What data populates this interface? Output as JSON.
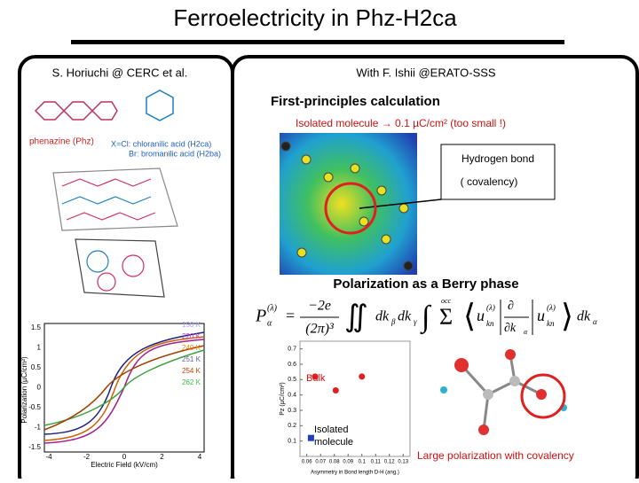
{
  "title": "Ferroelectricity in Phz-H2ca",
  "left": {
    "credit": "S. Horiuchi @ CERC et al.",
    "phenazine": "phenazine (Phz)",
    "acid_1": "X=Cl: chloranilic acid (H2ca)",
    "acid_2": "Br: bromanilic acid (H2ba)",
    "hysteresis": {
      "ylabel": "Polarization (µC/cm²)",
      "xlabel": "Electric Field (kV/cm)",
      "yticks": [
        1.5,
        1,
        0.5,
        0,
        -0.5,
        -1,
        -1.5
      ],
      "xticks": [
        -4,
        -2,
        0,
        2,
        4
      ],
      "temperatures": [
        "150 K",
        "220 K",
        "240 K",
        "251 K",
        "254 K",
        "262 K"
      ]
    }
  },
  "right": {
    "credit": "With F. Ishii @ERATO-SSS",
    "heading": "First-principles calculation",
    "isolated_note": "Isolated molecule → 0.1 µC/cm² (too small !)",
    "hbond_1": "Hydrogen bond",
    "hbond_2": "( covalency)",
    "berry": "Polarization as a Berry phase",
    "formula": {
      "lhs": "P",
      "lhs_sup": "(λ)",
      "lhs_sub": "α",
      "num": "−2e",
      "den": "(2π)³",
      "integrand": "dk",
      "beta": "β",
      "gamma": "γ",
      "sum_label": "occ",
      "bra": "u",
      "lam": "(λ)",
      "kn": "kn",
      "partial": "∂",
      "dka": "∂k",
      "alpha": "α"
    },
    "scatter": {
      "ylabel": "Pz (µC/cm²)",
      "xlabel": "Asymmetry in Bond length D-H (ang.)",
      "yticks": [
        0.7,
        0.6,
        0.5,
        0.4,
        0.3,
        0.2,
        0.1
      ],
      "xticks": [
        0.06,
        0.07,
        0.08,
        0.09,
        0.1,
        0.11,
        0.12,
        0.13
      ],
      "ylim": [
        0,
        0.75
      ],
      "xlim": [
        0.055,
        0.135
      ],
      "bulk_label": "Bulk",
      "isolated_label": "Isolated molecule",
      "bulk_points": {
        "x": [
          0.066,
          0.081,
          0.1
        ],
        "y": [
          0.52,
          0.43,
          0.52
        ],
        "color": "#e02020"
      },
      "isolated_points": {
        "x": [
          0.063
        ],
        "y": [
          0.12
        ],
        "color": "#2040c0"
      }
    },
    "conclusion": "Large polarization with covalency"
  }
}
